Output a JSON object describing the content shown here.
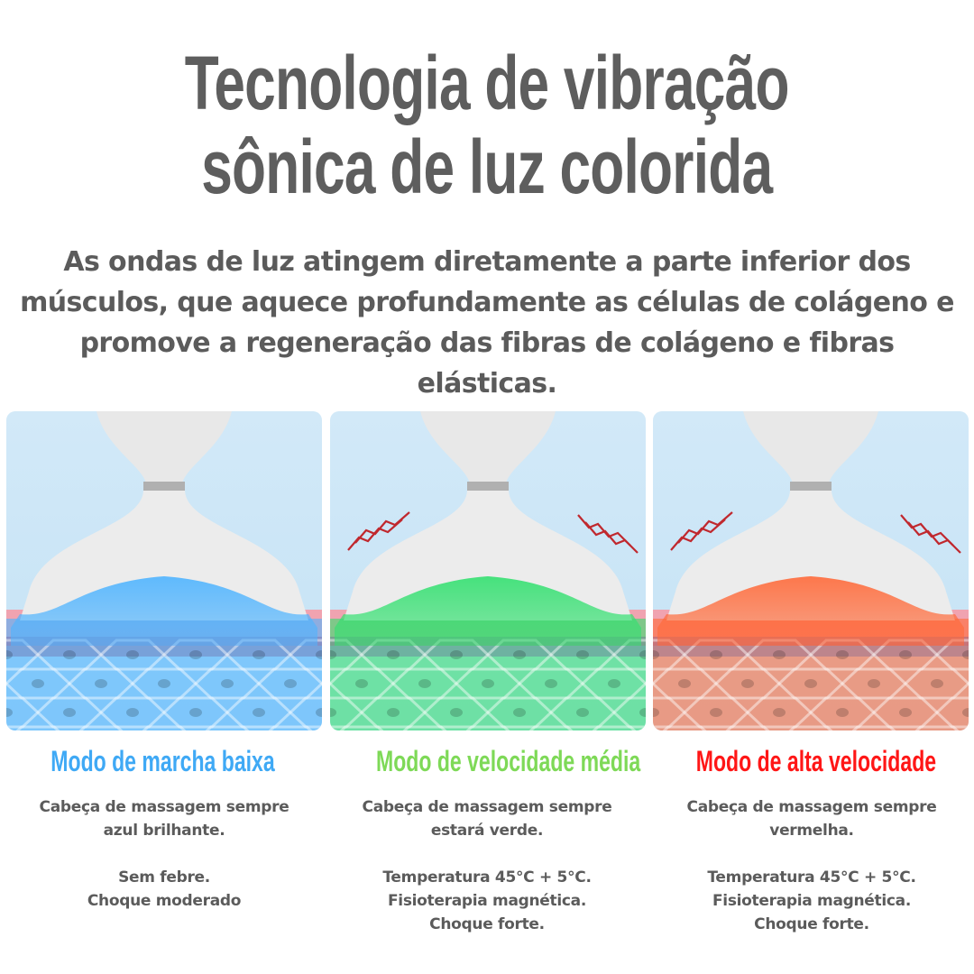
{
  "headline": [
    "Tecnologia de vibração",
    "sônica de luz colorida"
  ],
  "intro": "As ondas de luz atingem diretamente a parte inferior dos músculos, que aquece profundamente as células de colágeno e promove a regeneração das fibras de colágeno e fibras elásticas.",
  "modes": [
    {
      "title": "Modo de marcha baixa",
      "color": "#3fa9f5",
      "light": "#4fb4ff",
      "vibration": false,
      "lines": [
        "Cabeça de massagem sempre",
        "azul brilhante.",
        "",
        "Sem febre.",
        "Choque moderado"
      ]
    },
    {
      "title": "Modo de velocidade média",
      "color": "#7ed957",
      "light": "#33e070",
      "vibration": true,
      "lines": [
        "Cabeça de massagem sempre",
        "estará verde.",
        "",
        "Temperatura 45°C + 5°C.",
        "Fisioterapia magnética.",
        "Choque forte."
      ]
    },
    {
      "title": "Modo de alta velocidade",
      "color": "#ff1616",
      "light": "#ff6a3a",
      "vibration": true,
      "lines": [
        "Cabeça de massagem sempre",
        "vermelha.",
        "",
        "Temperatura 45°C + 5°C.",
        "Fisioterapia magnética.",
        "Choque forte."
      ]
    }
  ]
}
